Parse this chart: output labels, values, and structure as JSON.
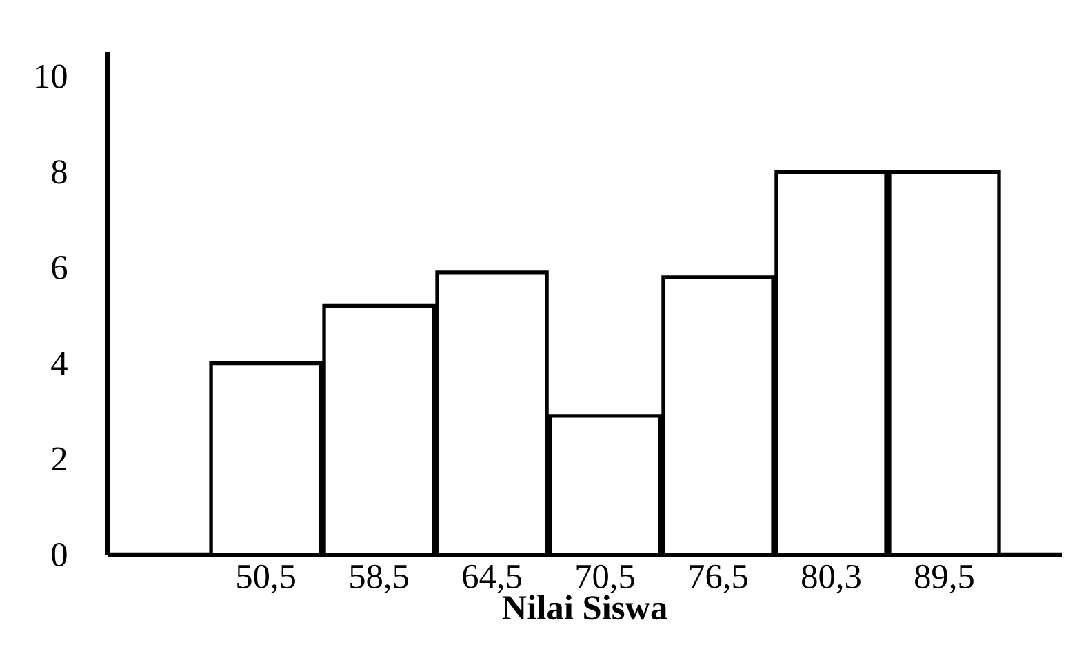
{
  "chart_data": {
    "type": "bar",
    "xlabel": "Nilai Siswa",
    "categories": [
      "50,5",
      "58,5",
      "64,5",
      "70,5",
      "76,5",
      "80,3",
      "89,5"
    ],
    "values": [
      4,
      5.2,
      5.9,
      2.9,
      5.8,
      8,
      8
    ],
    "color": "#ffffff",
    "ylim": [
      0,
      10.5
    ],
    "yticks": [
      0,
      2,
      4,
      6,
      8,
      10
    ]
  }
}
